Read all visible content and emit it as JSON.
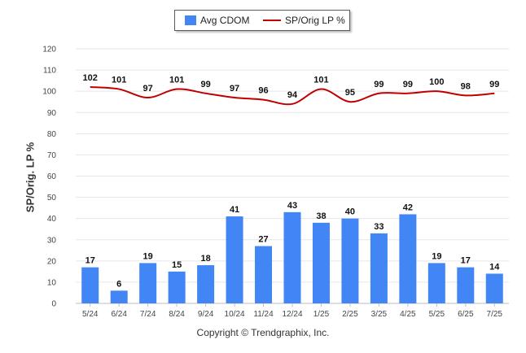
{
  "chart_data": {
    "type": "bar",
    "categories": [
      "5/24",
      "6/24",
      "7/24",
      "8/24",
      "9/24",
      "10/24",
      "11/24",
      "12/24",
      "1/25",
      "2/25",
      "3/25",
      "4/25",
      "5/25",
      "6/25",
      "7/25"
    ],
    "series": [
      {
        "name": "Avg CDOM",
        "type": "bar",
        "color": "#4285f4",
        "values": [
          17,
          6,
          19,
          15,
          18,
          41,
          27,
          43,
          38,
          40,
          33,
          42,
          19,
          17,
          14
        ]
      },
      {
        "name": "SP/Orig LP %",
        "type": "line",
        "color": "#c00000",
        "values": [
          102,
          101,
          97,
          101,
          99,
          97,
          96,
          94,
          101,
          95,
          99,
          99,
          100,
          98,
          99
        ]
      }
    ],
    "ylabel": "SP/Orig. LP %",
    "ylim": [
      0,
      120
    ],
    "yticks": [
      0,
      10,
      20,
      30,
      40,
      50,
      60,
      70,
      80,
      90,
      100,
      110,
      120
    ],
    "grid": true,
    "legend_position": "top-center"
  },
  "footer": {
    "copyright": "Copyright © Trendgraphix, Inc."
  }
}
